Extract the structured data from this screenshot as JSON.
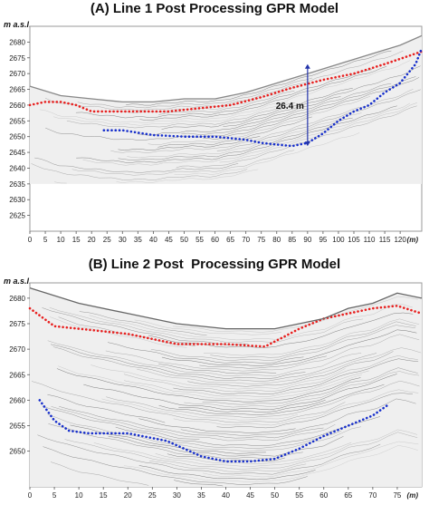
{
  "panels": {
    "a": {
      "title": "(A) Line 1 Post Processing GPR Model",
      "ylabel": "m a.s.l.",
      "xunit": "(m)",
      "annotation": "26.4 m"
    },
    "b": {
      "title": "(B) Line 2 Post  Processing GPR Model",
      "ylabel": "m a.s.l.",
      "xunit": "(m)"
    }
  },
  "colors": {
    "surface_reflector": "#e8201f",
    "bottom_reflector": "#1830cc",
    "annotation_arrow": "#2233aa",
    "radargram_bg": "#efefef"
  },
  "chart_data": [
    {
      "type": "line",
      "title": "(A) Line 1 Post Processing GPR Model",
      "ylabel": "m a.s.l.",
      "xlabel": "(m)",
      "xlim": [
        0,
        127
      ],
      "ylim": [
        2620,
        2685
      ],
      "x_ticks": [
        0,
        5,
        10,
        15,
        20,
        25,
        30,
        35,
        40,
        45,
        50,
        55,
        60,
        65,
        70,
        75,
        80,
        85,
        90,
        95,
        100,
        105,
        110,
        115,
        120
      ],
      "y_ticks": [
        2625,
        2630,
        2635,
        2640,
        2645,
        2650,
        2655,
        2660,
        2665,
        2670,
        2675,
        2680
      ],
      "series": [
        {
          "color": "#e8201f",
          "style": "dotted",
          "x": [
            0,
            5,
            10,
            15,
            20,
            25,
            35,
            45,
            55,
            65,
            75,
            85,
            95,
            105,
            115,
            127
          ],
          "y": [
            2660,
            2661,
            2661,
            2660,
            2658,
            2658,
            2658,
            2658,
            2659,
            2660,
            2662.5,
            2665.5,
            2668,
            2670,
            2673,
            2677
          ]
        },
        {
          "color": "#1830cc",
          "style": "dotted",
          "x": [
            24,
            30,
            40,
            50,
            60,
            70,
            75,
            80,
            85,
            90,
            95,
            100,
            105,
            110,
            115,
            120,
            125,
            127
          ],
          "y": [
            2652,
            2652,
            2650.5,
            2650,
            2650,
            2649,
            2648,
            2647.5,
            2647,
            2648,
            2651,
            2655,
            2658,
            2660,
            2664,
            2667,
            2673,
            2678
          ]
        },
        {
          "color": "#888888",
          "style": "solid",
          "role": "ground surface",
          "x": [
            0,
            10,
            20,
            30,
            40,
            50,
            60,
            70,
            80,
            90,
            100,
            110,
            120,
            127
          ],
          "y": [
            2666,
            2663,
            2662,
            2661,
            2661,
            2662,
            2662,
            2664,
            2667,
            2670,
            2673,
            2676,
            2679,
            2682
          ]
        }
      ],
      "annotations": [
        {
          "text": "26.4 m",
          "x": 90,
          "y_from": 2647,
          "y_to": 2673
        }
      ]
    },
    {
      "type": "line",
      "title": "(B) Line 2 Post  Processing GPR Model",
      "ylabel": "m a.s.l.",
      "xlabel": "(m)",
      "xlim": [
        0,
        80
      ],
      "ylim": [
        2643,
        2683
      ],
      "x_ticks": [
        0,
        5,
        10,
        15,
        20,
        25,
        30,
        35,
        40,
        45,
        50,
        55,
        60,
        65,
        70,
        75
      ],
      "y_ticks": [
        2650,
        2655,
        2660,
        2665,
        2670,
        2675,
        2680
      ],
      "series": [
        {
          "color": "#e8201f",
          "style": "dotted",
          "x": [
            0,
            5,
            10,
            20,
            30,
            40,
            48,
            55,
            60,
            65,
            70,
            75,
            80
          ],
          "y": [
            2678,
            2674.5,
            2674,
            2673,
            2671,
            2671,
            2670.5,
            2674,
            2676,
            2677,
            2678,
            2678.5,
            2677
          ]
        },
        {
          "color": "#1830cc",
          "style": "dotted",
          "x": [
            2,
            5,
            8,
            12,
            20,
            28,
            35,
            40,
            45,
            50,
            55,
            60,
            65,
            70,
            73
          ],
          "y": [
            2660,
            2656,
            2654,
            2653.5,
            2653.5,
            2652,
            2649,
            2648,
            2648,
            2648.5,
            2650.5,
            2653,
            2655,
            2657,
            2659
          ]
        },
        {
          "color": "#666666",
          "style": "solid",
          "role": "ground surface",
          "x": [
            0,
            10,
            20,
            30,
            40,
            50,
            60,
            65,
            70,
            75,
            80
          ],
          "y": [
            2682,
            2679,
            2677,
            2675,
            2674,
            2674,
            2676,
            2678,
            2679,
            2681,
            2680
          ]
        }
      ]
    }
  ]
}
